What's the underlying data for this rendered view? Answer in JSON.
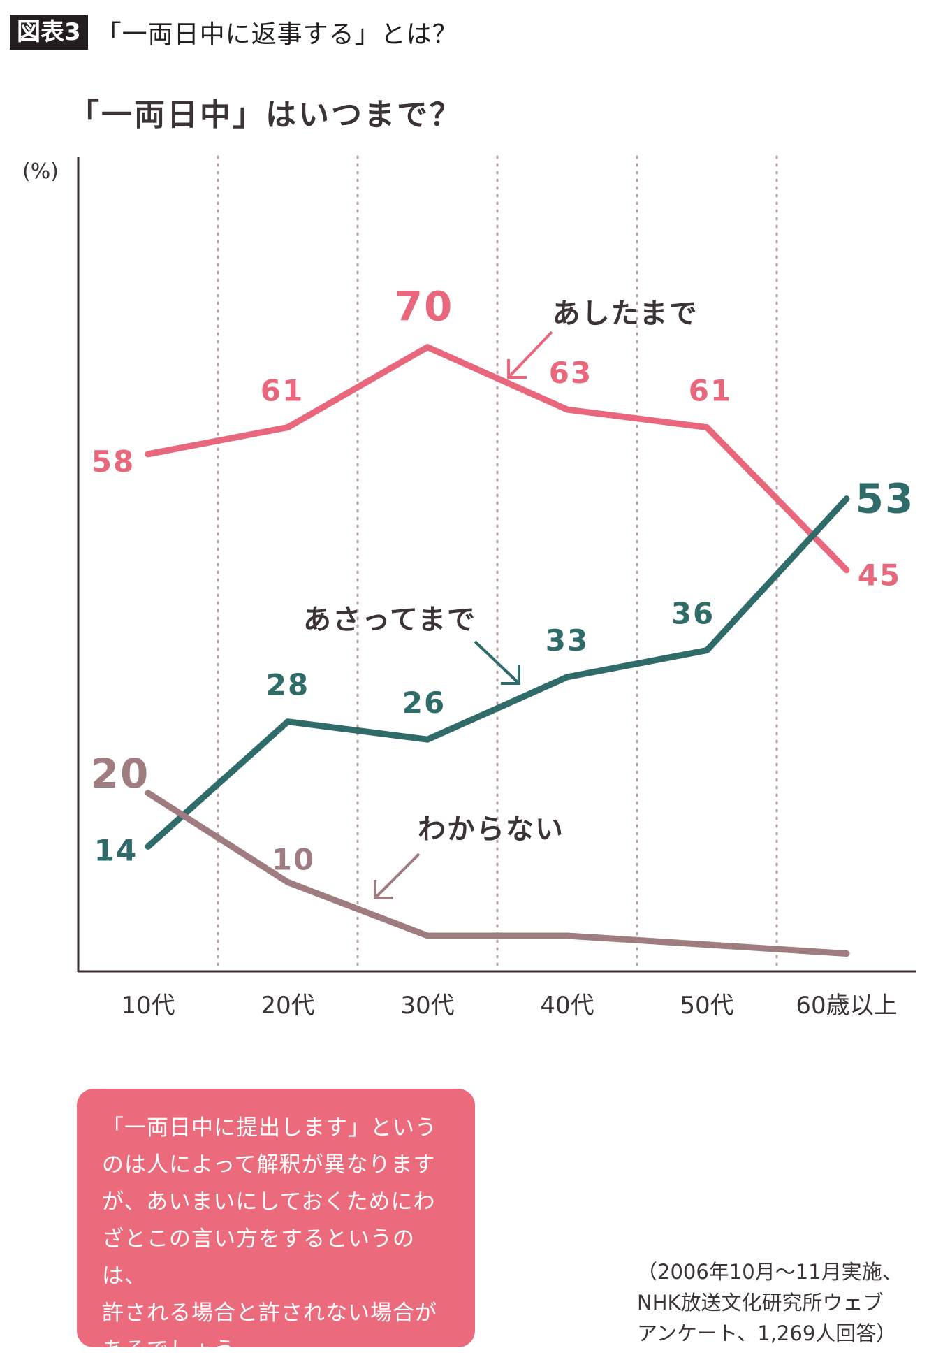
{
  "header": {
    "figure_label": "図表3",
    "title": "「一両日中に返事する」とは？"
  },
  "chart_data": {
    "type": "line",
    "title": "「一両日中」はいつまで？",
    "ylabel": "(%)",
    "categories": [
      "10代",
      "20代",
      "30代",
      "40代",
      "50代",
      "60歳以上"
    ],
    "ylim": [
      0,
      90
    ],
    "grid": "vertical dotted",
    "series": [
      {
        "name": "あしたまで",
        "values": [
          58,
          61,
          70,
          63,
          61,
          45
        ],
        "color": "#e8677c",
        "labels": [
          "58",
          "61",
          "70",
          "63",
          "61",
          "45"
        ]
      },
      {
        "name": "あさってまで",
        "values": [
          14,
          28,
          26,
          33,
          36,
          53
        ],
        "color": "#2e6b69",
        "labels": [
          "14",
          "28",
          "26",
          "33",
          "36",
          "53"
        ]
      },
      {
        "name": "わからない",
        "values": [
          20,
          10,
          4,
          4,
          3,
          2
        ],
        "color": "#9e7c7f",
        "labels": [
          "20",
          "10"
        ]
      }
    ]
  },
  "note": {
    "lines": [
      "「一両日中に提出します」という",
      "のは人によって解釈が異なります",
      "が、あいまいにしておくためにわ",
      "ざとこの言い方をするというのは、",
      "許される場合と許されない場合が",
      "あるでしょう。"
    ]
  },
  "source": {
    "lines": [
      "（2006年10月〜11月実施、",
      "NHK放送文化研究所ウェブ",
      "アンケート、1,269人回答）"
    ]
  }
}
